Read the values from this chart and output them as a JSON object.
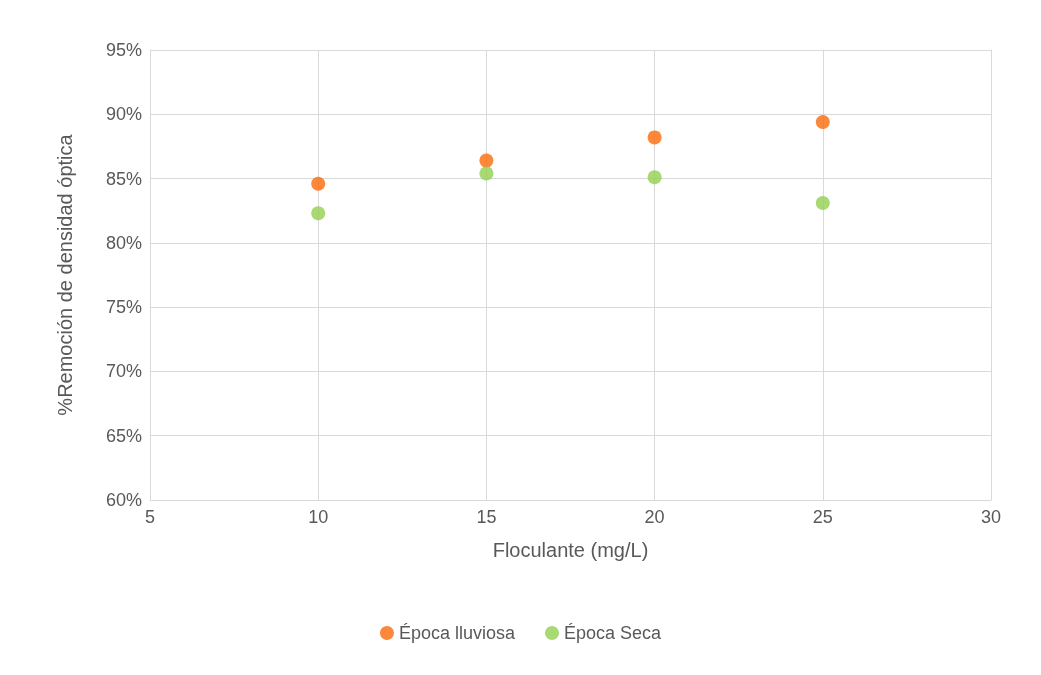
{
  "chart_data": {
    "type": "scatter",
    "xlabel": "Floculante (mg/L)",
    "ylabel": "%Remoción de densidad óptica",
    "x": [
      10,
      15,
      20,
      25
    ],
    "series": [
      {
        "name": "Época lluviosa",
        "color": "#fa6a0a",
        "values": [
          84.6,
          86.4,
          88.2,
          89.4
        ]
      },
      {
        "name": "Época Seca",
        "color": "#92d050",
        "values": [
          82.3,
          85.4,
          85.1,
          83.1
        ]
      }
    ],
    "xlim": [
      5,
      30
    ],
    "xticks": [
      5,
      10,
      15,
      20,
      25,
      30
    ],
    "ylim": [
      60,
      95
    ],
    "yticks": [
      {
        "value": 60,
        "label": "60%"
      },
      {
        "value": 65,
        "label": "65%"
      },
      {
        "value": 70,
        "label": "70%"
      },
      {
        "value": 75,
        "label": "75%"
      },
      {
        "value": 80,
        "label": "80%"
      },
      {
        "value": 85,
        "label": "85%"
      },
      {
        "value": 90,
        "label": "90%"
      },
      {
        "value": 95,
        "label": "95%"
      }
    ],
    "grid": true,
    "legend": "bottom",
    "marker": "circle"
  }
}
